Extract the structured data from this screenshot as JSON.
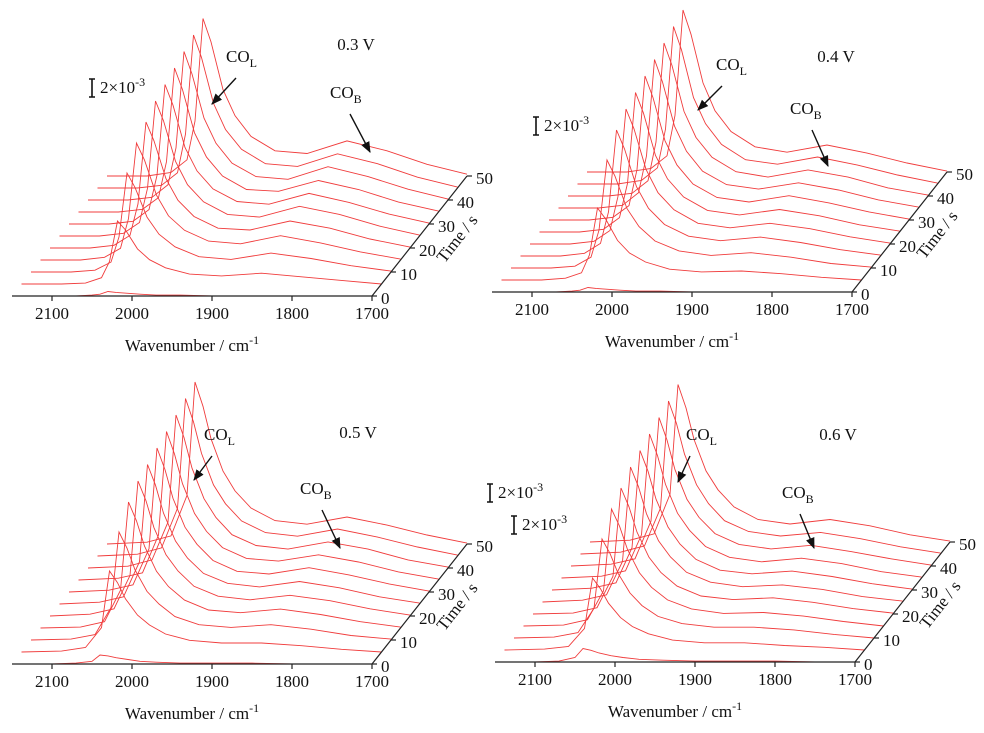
{
  "chart_data": [
    {
      "type": "waterfall",
      "title": "0.3 V",
      "color": "#f03c3c",
      "annotations": [
        {
          "text": "CO",
          "sub": "L"
        },
        {
          "text": "CO",
          "sub": "B"
        }
      ],
      "scale_bar": {
        "value": 2,
        "label": "2×10",
        "exp": "-3"
      },
      "xlabel": "Wavenumber / cm",
      "xlabel_sup": "-1",
      "zlabel": "Time / s",
      "xlim": [
        2150,
        1700
      ],
      "xticks": [
        2100,
        2000,
        1900,
        1800,
        1700
      ],
      "zlim": [
        0,
        50
      ],
      "zticks": [
        0,
        10,
        20,
        30,
        40,
        50
      ],
      "x": [
        2150,
        2100,
        2070,
        2050,
        2040,
        2030,
        2020,
        2005,
        1990,
        1970,
        1940,
        1900,
        1850,
        1800,
        1750,
        1700
      ],
      "z": [
        0,
        5,
        10,
        15,
        20,
        25,
        30,
        35,
        40,
        45,
        50
      ],
      "spectra": [
        [
          0,
          0,
          0,
          0.1,
          0.2,
          0.5,
          0.4,
          0.3,
          0.2,
          0.1,
          0.1,
          0,
          0,
          0,
          0,
          0
        ],
        [
          0,
          0,
          0.1,
          0.7,
          2.5,
          7,
          6,
          3.9,
          2.7,
          1.8,
          1.1,
          0.9,
          1.2,
          0.8,
          0.4,
          0
        ],
        [
          0,
          0,
          0.2,
          1.1,
          3.9,
          11,
          9.4,
          6.1,
          4.2,
          2.8,
          1.7,
          1.4,
          2.1,
          1.5,
          0.7,
          0.1
        ],
        [
          0,
          0,
          0.3,
          1.3,
          4.6,
          13,
          11.1,
          7.2,
          4.9,
          3.3,
          2.1,
          1.8,
          2.7,
          1.9,
          0.9,
          0.1
        ],
        [
          0,
          0,
          0.3,
          1.4,
          4.9,
          14,
          11.9,
          7.7,
          5.3,
          3.5,
          2.2,
          2,
          3,
          2.2,
          1,
          0.1
        ],
        [
          0,
          0,
          0.3,
          1.5,
          5.3,
          15,
          12.8,
          8.3,
          5.7,
          3.8,
          2.4,
          2.1,
          3.3,
          2.4,
          1.1,
          0.1
        ],
        [
          0,
          0,
          0.3,
          1.6,
          5.4,
          15.5,
          13.2,
          8.5,
          5.9,
          3.9,
          2.5,
          2.2,
          3.4,
          2.4,
          1.1,
          0.1
        ],
        [
          0,
          0,
          0.3,
          1.6,
          5.6,
          16,
          13.6,
          8.8,
          6.1,
          4,
          2.5,
          2.3,
          3.5,
          2.5,
          1.1,
          0.1
        ],
        [
          0,
          0,
          0.3,
          1.7,
          5.8,
          16.5,
          14,
          9.1,
          6.3,
          4.1,
          2.6,
          2.3,
          3.7,
          2.6,
          1.2,
          0.1
        ],
        [
          0,
          0,
          0.3,
          1.7,
          6,
          17,
          14.5,
          9.4,
          6.5,
          4.3,
          2.7,
          2.4,
          3.8,
          2.7,
          1.2,
          0.1
        ],
        [
          0,
          0,
          0.4,
          1.8,
          6.1,
          17.5,
          14.9,
          9.6,
          6.7,
          4.4,
          2.8,
          2.5,
          3.9,
          2.8,
          1.3,
          0.2
        ]
      ]
    },
    {
      "type": "waterfall",
      "title": "0.4 V",
      "color": "#f03c3c",
      "annotations": [
        {
          "text": "CO",
          "sub": "L"
        },
        {
          "text": "CO",
          "sub": "B"
        }
      ],
      "scale_bar": {
        "value": 2,
        "label": "2×10",
        "exp": "-3"
      },
      "xlabel": "Wavenumber / cm",
      "xlabel_sup": "-1",
      "zlabel": "Time / s",
      "xlim": [
        2150,
        1700
      ],
      "xticks": [
        2100,
        2000,
        1900,
        1800,
        1700
      ],
      "zlim": [
        0,
        50
      ],
      "zticks": [
        0,
        10,
        20,
        30,
        40,
        50
      ],
      "x": [
        2150,
        2100,
        2070,
        2050,
        2040,
        2030,
        2020,
        2005,
        1990,
        1970,
        1940,
        1900,
        1850,
        1800,
        1750,
        1700
      ],
      "z": [
        0,
        5,
        10,
        15,
        20,
        25,
        30,
        35,
        40,
        45,
        50
      ],
      "spectra": [
        [
          0,
          0,
          0,
          0.1,
          0.2,
          0.5,
          0.4,
          0.3,
          0.2,
          0.1,
          0.1,
          0,
          0,
          0,
          0,
          0
        ],
        [
          0,
          0,
          0.2,
          0.8,
          2.8,
          8,
          6.8,
          4.4,
          3,
          2,
          1.2,
          0.9,
          1,
          0.7,
          0.3,
          0
        ],
        [
          0,
          0,
          0.2,
          1.2,
          4.2,
          12,
          10.2,
          6.6,
          4.6,
          3,
          1.9,
          1.4,
          1.7,
          1.2,
          0.5,
          0.1
        ],
        [
          0,
          0,
          0.3,
          1.4,
          4.9,
          14,
          11.9,
          7.7,
          5.3,
          3.5,
          2.2,
          1.7,
          2.1,
          1.5,
          0.7,
          0.1
        ],
        [
          0,
          0,
          0.3,
          1.5,
          5.3,
          15,
          12.8,
          8.3,
          5.7,
          3.8,
          2.3,
          1.8,
          2.3,
          1.7,
          0.8,
          0.1
        ],
        [
          0,
          0,
          0.3,
          1.6,
          5.4,
          15.5,
          13.2,
          8.5,
          5.9,
          3.9,
          2.4,
          1.9,
          2.5,
          1.8,
          0.8,
          0.1
        ],
        [
          0,
          0,
          0.3,
          1.6,
          5.6,
          16,
          13.6,
          8.8,
          6.1,
          4,
          2.5,
          2,
          2.7,
          1.9,
          0.9,
          0.1
        ],
        [
          0,
          0,
          0.3,
          1.7,
          5.8,
          16.5,
          14,
          9.1,
          6.3,
          4.1,
          2.6,
          2.1,
          2.8,
          2,
          0.9,
          0.1
        ],
        [
          0,
          0,
          0.3,
          1.7,
          6,
          17,
          14.5,
          9.4,
          6.5,
          4.3,
          2.7,
          2.1,
          2.9,
          2.1,
          0.9,
          0.1
        ],
        [
          0,
          0,
          0.4,
          1.8,
          6.1,
          17.5,
          14.9,
          9.6,
          6.7,
          4.4,
          2.7,
          2.2,
          3,
          2.1,
          1,
          0.1
        ],
        [
          0,
          0,
          0.4,
          1.8,
          6.3,
          18,
          15.3,
          9.9,
          6.8,
          4.5,
          2.8,
          2.2,
          3,
          2.1,
          1,
          0.1
        ]
      ]
    },
    {
      "type": "waterfall",
      "title": "0.5 V",
      "color": "#f03c3c",
      "annotations": [
        {
          "text": "CO",
          "sub": "L"
        },
        {
          "text": "CO",
          "sub": "B"
        }
      ],
      "scale_bar": {
        "value": 2,
        "label": "2×10",
        "exp": "-3"
      },
      "xlabel": "Wavenumber / cm",
      "xlabel_sup": "-1",
      "zlabel": "Time / s",
      "xlim": [
        2150,
        1700
      ],
      "xticks": [
        2100,
        2000,
        1900,
        1800,
        1700
      ],
      "zlim": [
        0,
        50
      ],
      "zticks": [
        0,
        10,
        20,
        30,
        40,
        50
      ],
      "x": [
        2150,
        2100,
        2070,
        2050,
        2040,
        2030,
        2020,
        2005,
        1990,
        1970,
        1940,
        1900,
        1850,
        1800,
        1750,
        1700
      ],
      "z": [
        0,
        5,
        10,
        15,
        20,
        25,
        30,
        35,
        40,
        45,
        50
      ],
      "spectra": [
        [
          0,
          0,
          0.1,
          0.3,
          1,
          0.9,
          0.7,
          0.5,
          0.3,
          0.2,
          0.1,
          0.1,
          0.1,
          0,
          0,
          0
        ],
        [
          0,
          0.1,
          0.5,
          2.7,
          9,
          7.7,
          5.9,
          4.1,
          3,
          2,
          1.3,
          1,
          1,
          0.7,
          0.3,
          0
        ],
        [
          0,
          0.1,
          0.6,
          3.6,
          12,
          10.2,
          7.8,
          5.4,
          4,
          2.6,
          1.7,
          1.4,
          1.7,
          1.2,
          0.5,
          0.1
        ],
        [
          0,
          0.1,
          0.7,
          4.2,
          14,
          11.9,
          9.1,
          6.3,
          4.6,
          3.1,
          2,
          1.7,
          2.1,
          1.5,
          0.7,
          0.1
        ],
        [
          0,
          0.2,
          0.8,
          4.5,
          15,
          12.8,
          9.8,
          6.8,
          5,
          3.3,
          2.2,
          1.8,
          2.3,
          1.7,
          0.8,
          0.1
        ],
        [
          0,
          0.2,
          0.8,
          4.7,
          15.5,
          13.2,
          10.1,
          7,
          5.1,
          3.4,
          2.3,
          1.9,
          2.5,
          1.8,
          0.8,
          0.1
        ],
        [
          0,
          0.2,
          0.8,
          4.8,
          16,
          13.6,
          10.4,
          7.2,
          5.3,
          3.5,
          2.3,
          2,
          2.7,
          1.9,
          0.9,
          0.1
        ],
        [
          0,
          0.2,
          0.8,
          5,
          16.5,
          14,
          10.7,
          7.4,
          5.4,
          3.6,
          2.4,
          2.1,
          2.8,
          2,
          0.9,
          0.1
        ],
        [
          0,
          0.2,
          0.9,
          5.1,
          17,
          14.5,
          11.1,
          7.7,
          5.6,
          3.7,
          2.5,
          2.1,
          2.9,
          2.1,
          0.9,
          0.1
        ],
        [
          0,
          0.2,
          0.9,
          5.3,
          17.5,
          14.9,
          11.4,
          7.9,
          5.8,
          3.9,
          2.6,
          2.2,
          3,
          2.1,
          1,
          0.1
        ],
        [
          0,
          0.2,
          0.9,
          5.4,
          18,
          15.3,
          11.7,
          8.1,
          5.9,
          4,
          2.6,
          2.2,
          3,
          2.1,
          1,
          0.1
        ]
      ]
    },
    {
      "type": "waterfall",
      "title": "0.6 V",
      "color": "#f03c3c",
      "annotations": [
        {
          "text": "CO",
          "sub": "L"
        },
        {
          "text": "CO",
          "sub": "B"
        }
      ],
      "scale_bar": {
        "value": 2,
        "label": "2×10",
        "exp": "-3"
      },
      "xlabel": "Wavenumber / cm",
      "xlabel_sup": "-1",
      "zlabel": "Time / s",
      "xlim": [
        2150,
        1700
      ],
      "xticks": [
        2100,
        2000,
        1900,
        1800,
        1700
      ],
      "zlim": [
        0,
        50
      ],
      "zticks": [
        0,
        10,
        20,
        30,
        40,
        50
      ],
      "x": [
        2150,
        2100,
        2070,
        2050,
        2040,
        2030,
        2020,
        2005,
        1990,
        1970,
        1940,
        1900,
        1850,
        1800,
        1750,
        1700
      ],
      "z": [
        0,
        5,
        10,
        15,
        20,
        25,
        30,
        35,
        40,
        45,
        50
      ],
      "spectra": [
        [
          0,
          0,
          0.1,
          0.5,
          1.5,
          1.3,
          1,
          0.7,
          0.5,
          0.3,
          0.2,
          0.1,
          0.1,
          0.1,
          0,
          0
        ],
        [
          0,
          0.1,
          0.4,
          2.4,
          8,
          6.8,
          5.2,
          3.6,
          2.6,
          1.8,
          1.1,
          0.8,
          0.8,
          0.5,
          0.3,
          0
        ],
        [
          0,
          0.1,
          0.6,
          3.3,
          11,
          9.4,
          7.2,
          5,
          3.6,
          2.4,
          1.6,
          1.2,
          1.2,
          0.9,
          0.4,
          0
        ],
        [
          0,
          0.1,
          0.7,
          3.9,
          13,
          11.1,
          8.5,
          5.9,
          4.3,
          2.9,
          1.9,
          1.4,
          1.5,
          1.1,
          0.5,
          0
        ],
        [
          0,
          0.1,
          0.7,
          4.2,
          14,
          11.9,
          9.1,
          6.3,
          4.6,
          3.1,
          2,
          1.6,
          1.8,
          1.3,
          0.6,
          0.1
        ],
        [
          0,
          0.2,
          0.8,
          4.5,
          15,
          12.8,
          9.8,
          6.8,
          5,
          3.3,
          2.2,
          1.7,
          1.9,
          1.4,
          0.6,
          0.1
        ],
        [
          0,
          0.2,
          0.8,
          4.7,
          15.5,
          13.2,
          10.1,
          7,
          5.1,
          3.4,
          2.2,
          1.8,
          2.1,
          1.5,
          0.7,
          0.1
        ],
        [
          0,
          0.2,
          0.8,
          4.8,
          16,
          13.6,
          10.4,
          7.2,
          5.3,
          3.5,
          2.3,
          1.8,
          2.2,
          1.6,
          0.7,
          0.1
        ],
        [
          0,
          0.2,
          0.8,
          5,
          16.5,
          14,
          10.7,
          7.4,
          5.4,
          3.6,
          2.4,
          1.9,
          2.3,
          1.6,
          0.8,
          0.1
        ],
        [
          0,
          0.2,
          0.9,
          5.1,
          17,
          14.5,
          11.1,
          7.7,
          5.6,
          3.7,
          2.5,
          2,
          2.4,
          1.7,
          0.8,
          0.1
        ],
        [
          0,
          0.2,
          0.9,
          5.3,
          17.5,
          14.9,
          11.4,
          7.9,
          5.8,
          3.9,
          2.5,
          2,
          2.5,
          1.8,
          0.8,
          0.1
        ]
      ]
    }
  ]
}
